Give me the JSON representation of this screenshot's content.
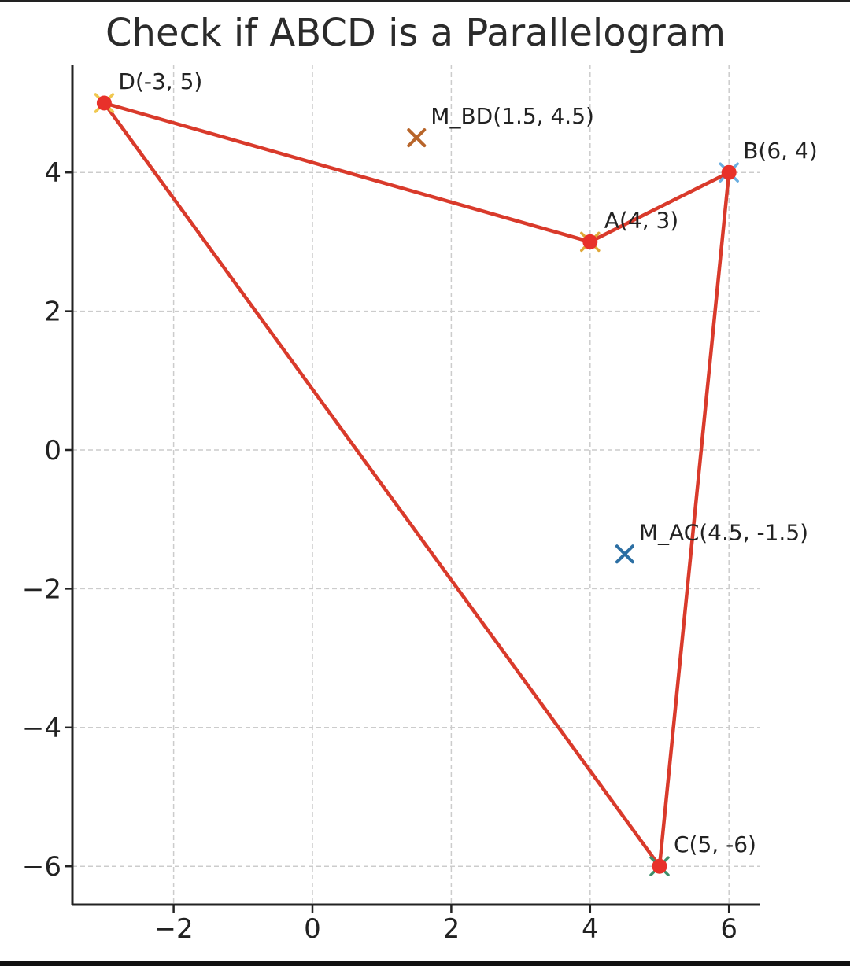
{
  "chart_data": {
    "type": "scatter",
    "title": "Check if ABCD is a Parallelogram",
    "xlabel": "",
    "ylabel": "",
    "xlim": [
      -3.2,
      6.4
    ],
    "ylim": [
      -6.3,
      5.5
    ],
    "grid": true,
    "x_ticks": [
      -2,
      0,
      2,
      4,
      6
    ],
    "x_tick_labels": [
      "−2",
      "0",
      "2",
      "4",
      "6"
    ],
    "y_ticks": [
      4,
      2,
      0,
      -2,
      -4,
      -6
    ],
    "y_tick_labels": [
      "4",
      "2",
      "0",
      "−2",
      "−4",
      "−6"
    ],
    "polygon": {
      "order": [
        "A",
        "B",
        "C",
        "D"
      ],
      "color": "#d93a2b"
    },
    "points": [
      {
        "id": "A",
        "x": 4,
        "y": 3,
        "label": "A(4, 3)",
        "marker_color": "#e0a838"
      },
      {
        "id": "B",
        "x": 6,
        "y": 4,
        "label": "B(6, 4)",
        "marker_color": "#6aaee0"
      },
      {
        "id": "C",
        "x": 5,
        "y": -6,
        "label": "C(5, -6)",
        "marker_color": "#3e8f6a"
      },
      {
        "id": "D",
        "x": -3,
        "y": 5,
        "label": "D(-3, 5)",
        "marker_color": "#f0c850"
      }
    ],
    "midpoints": [
      {
        "id": "M_BD",
        "x": 1.5,
        "y": 4.5,
        "label": "M_BD(1.5, 4.5)",
        "color": "#b8652a"
      },
      {
        "id": "M_AC",
        "x": 4.5,
        "y": -1.5,
        "label": "M_AC(4.5, -1.5)",
        "color": "#2c6fa3"
      }
    ],
    "vertex_color": "#e8312a"
  }
}
